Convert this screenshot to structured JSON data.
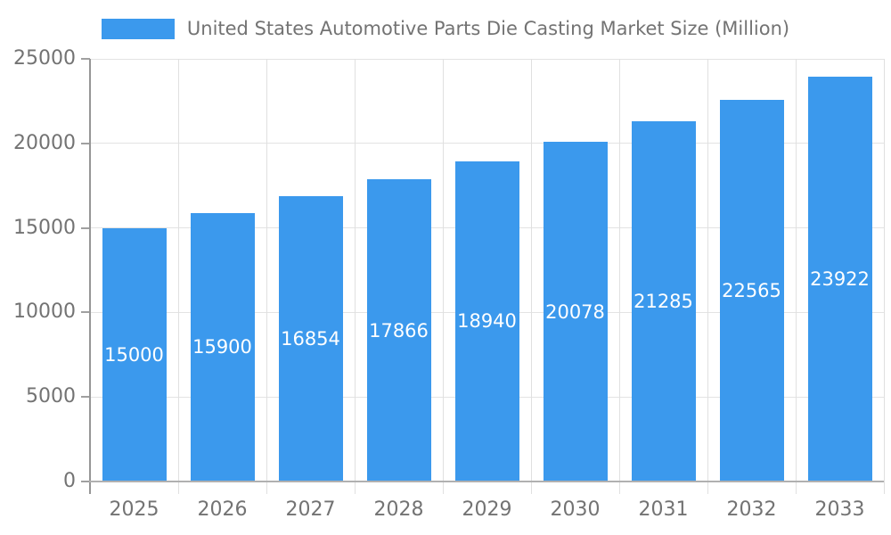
{
  "chart_data": {
    "type": "bar",
    "title": "United States Automotive Parts Die Casting Market Size (Million)",
    "legend": {
      "label": "United States Automotive Parts Die Casting Market Size (Million)",
      "position": "top-center"
    },
    "categories": [
      "2025",
      "2026",
      "2027",
      "2028",
      "2029",
      "2030",
      "2031",
      "2032",
      "2033"
    ],
    "series": [
      {
        "name": "United States Automotive Parts Die Casting Market Size (Million)",
        "values": [
          15000,
          15900,
          16854,
          17866,
          18940,
          20078,
          21285,
          22565,
          23922
        ]
      }
    ],
    "xlabel": "",
    "ylabel": "",
    "ylim": [
      0,
      25000
    ],
    "yticks": [
      0,
      5000,
      10000,
      15000,
      20000,
      25000
    ],
    "grid": true,
    "value_labels": "inside-center",
    "colors": {
      "bar": "#3B99ED",
      "tick_text": "#737373",
      "value_label_text": "#FFFFFF",
      "gridline": "#E3E3E3",
      "y_axis_line": "#969696",
      "x_axis_line": "#B0B0B0"
    }
  }
}
